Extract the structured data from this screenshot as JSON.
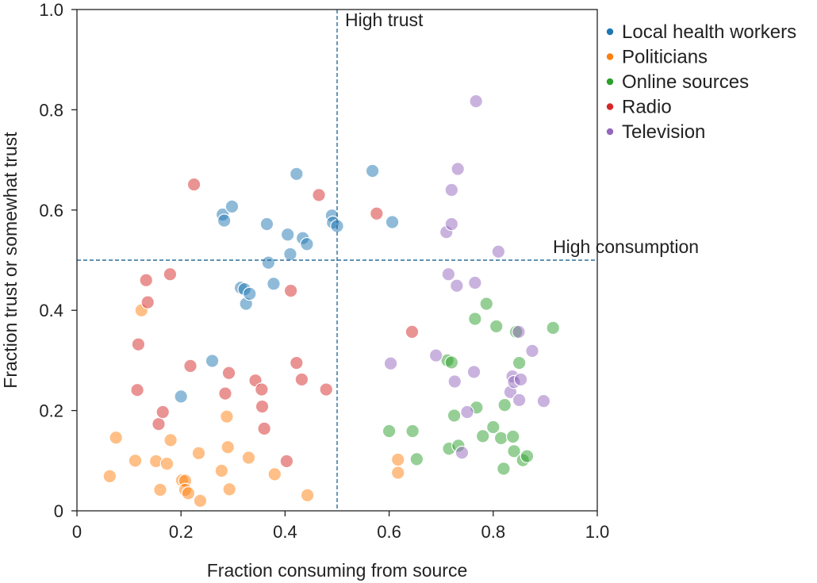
{
  "chart_data": {
    "type": "scatter",
    "title": "",
    "xlabel": "Fraction consuming from source",
    "ylabel": "Fraction trust or somewhat trust",
    "xlim": [
      0,
      1.0
    ],
    "ylim": [
      0,
      1.0
    ],
    "x_ticks": [
      0,
      0.2,
      0.4,
      0.6,
      0.8,
      1.0
    ],
    "x_tick_labels": [
      "0",
      "0.2",
      "0.4",
      "0.6",
      "0.8",
      "1.0"
    ],
    "y_ticks": [
      0,
      0.2,
      0.4,
      0.6,
      0.8,
      1.0
    ],
    "y_tick_labels": [
      "0",
      "0.2",
      "0.4",
      "0.6",
      "0.8",
      "1.0"
    ],
    "grid": false,
    "legend_position": "outside-top-right",
    "reference_lines": [
      {
        "orientation": "vertical",
        "value": 0.5,
        "label": "High trust",
        "color": "#2c6e9b"
      },
      {
        "orientation": "horizontal",
        "value": 0.5,
        "label": "High consumption",
        "color": "#2c6e9b"
      }
    ],
    "series": [
      {
        "name": "Local health workers",
        "color": "#1f77b4",
        "points": [
          [
            0.2,
            0.228
          ],
          [
            0.26,
            0.299
          ],
          [
            0.28,
            0.591
          ],
          [
            0.283,
            0.579
          ],
          [
            0.298,
            0.607
          ],
          [
            0.315,
            0.445
          ],
          [
            0.322,
            0.442
          ],
          [
            0.325,
            0.413
          ],
          [
            0.332,
            0.433
          ],
          [
            0.365,
            0.572
          ],
          [
            0.368,
            0.495
          ],
          [
            0.378,
            0.453
          ],
          [
            0.405,
            0.551
          ],
          [
            0.41,
            0.512
          ],
          [
            0.422,
            0.672
          ],
          [
            0.434,
            0.544
          ],
          [
            0.442,
            0.532
          ],
          [
            0.49,
            0.589
          ],
          [
            0.492,
            0.575
          ],
          [
            0.5,
            0.568
          ],
          [
            0.568,
            0.678
          ],
          [
            0.606,
            0.576
          ]
        ]
      },
      {
        "name": "Politicians",
        "color": "#ff7f0e",
        "points": [
          [
            0.063,
            0.069
          ],
          [
            0.075,
            0.146
          ],
          [
            0.112,
            0.1
          ],
          [
            0.124,
            0.4
          ],
          [
            0.152,
            0.099
          ],
          [
            0.16,
            0.042
          ],
          [
            0.173,
            0.094
          ],
          [
            0.18,
            0.141
          ],
          [
            0.202,
            0.061
          ],
          [
            0.208,
            0.06
          ],
          [
            0.208,
            0.042
          ],
          [
            0.214,
            0.035
          ],
          [
            0.234,
            0.115
          ],
          [
            0.237,
            0.02
          ],
          [
            0.278,
            0.08
          ],
          [
            0.288,
            0.188
          ],
          [
            0.29,
            0.127
          ],
          [
            0.293,
            0.043
          ],
          [
            0.33,
            0.106
          ],
          [
            0.38,
            0.073
          ],
          [
            0.443,
            0.031
          ],
          [
            0.617,
            0.102
          ],
          [
            0.617,
            0.076
          ]
        ]
      },
      {
        "name": "Online sources",
        "color": "#2ca02c",
        "points": [
          [
            0.6,
            0.159
          ],
          [
            0.645,
            0.159
          ],
          [
            0.653,
            0.103
          ],
          [
            0.712,
            0.3
          ],
          [
            0.715,
            0.124
          ],
          [
            0.72,
            0.296
          ],
          [
            0.725,
            0.19
          ],
          [
            0.733,
            0.13
          ],
          [
            0.765,
            0.383
          ],
          [
            0.768,
            0.206
          ],
          [
            0.78,
            0.149
          ],
          [
            0.787,
            0.413
          ],
          [
            0.8,
            0.167
          ],
          [
            0.806,
            0.368
          ],
          [
            0.815,
            0.145
          ],
          [
            0.82,
            0.084
          ],
          [
            0.822,
            0.211
          ],
          [
            0.838,
            0.148
          ],
          [
            0.84,
            0.119
          ],
          [
            0.844,
            0.357
          ],
          [
            0.85,
            0.295
          ],
          [
            0.857,
            0.101
          ],
          [
            0.865,
            0.109
          ],
          [
            0.915,
            0.365
          ]
        ]
      },
      {
        "name": "Radio",
        "color": "#d62728",
        "points": [
          [
            0.116,
            0.241
          ],
          [
            0.118,
            0.332
          ],
          [
            0.133,
            0.46
          ],
          [
            0.136,
            0.416
          ],
          [
            0.157,
            0.173
          ],
          [
            0.165,
            0.197
          ],
          [
            0.179,
            0.472
          ],
          [
            0.218,
            0.289
          ],
          [
            0.225,
            0.651
          ],
          [
            0.285,
            0.234
          ],
          [
            0.292,
            0.275
          ],
          [
            0.343,
            0.26
          ],
          [
            0.355,
            0.242
          ],
          [
            0.356,
            0.208
          ],
          [
            0.36,
            0.164
          ],
          [
            0.403,
            0.099
          ],
          [
            0.411,
            0.439
          ],
          [
            0.422,
            0.295
          ],
          [
            0.432,
            0.262
          ],
          [
            0.465,
            0.63
          ],
          [
            0.479,
            0.242
          ],
          [
            0.576,
            0.593
          ],
          [
            0.644,
            0.357
          ]
        ]
      },
      {
        "name": "Television",
        "color": "#9467bd",
        "points": [
          [
            0.603,
            0.294
          ],
          [
            0.69,
            0.31
          ],
          [
            0.71,
            0.556
          ],
          [
            0.714,
            0.472
          ],
          [
            0.72,
            0.572
          ],
          [
            0.72,
            0.64
          ],
          [
            0.726,
            0.258
          ],
          [
            0.73,
            0.449
          ],
          [
            0.732,
            0.682
          ],
          [
            0.74,
            0.116
          ],
          [
            0.75,
            0.197
          ],
          [
            0.763,
            0.277
          ],
          [
            0.765,
            0.455
          ],
          [
            0.767,
            0.817
          ],
          [
            0.81,
            0.517
          ],
          [
            0.833,
            0.237
          ],
          [
            0.837,
            0.268
          ],
          [
            0.84,
            0.257
          ],
          [
            0.849,
            0.357
          ],
          [
            0.85,
            0.221
          ],
          [
            0.853,
            0.262
          ],
          [
            0.875,
            0.319
          ],
          [
            0.897,
            0.219
          ]
        ]
      }
    ]
  }
}
